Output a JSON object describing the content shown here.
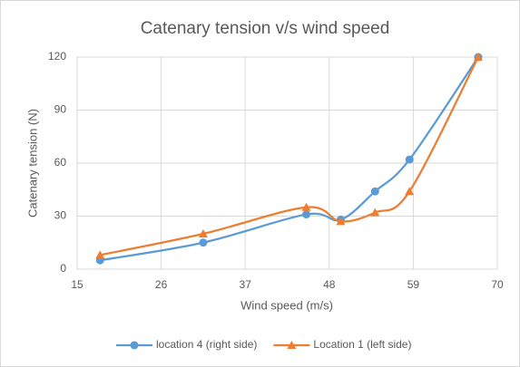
{
  "chart_data": {
    "type": "line",
    "title": "Catenary tension v/s wind speed",
    "x_label": "Wind speed (m/s)",
    "y_label": "Catenary tension (N)",
    "x": [
      18,
      31.5,
      45,
      49.5,
      54,
      58.5,
      67.5
    ],
    "series": [
      {
        "name": "location 4 (right side)",
        "color": "#5b9bd5",
        "marker": "circle",
        "values": [
          5,
          15,
          31,
          28,
          44,
          62,
          120
        ]
      },
      {
        "name": "Location 1 (left side)",
        "color": "#ed7d31",
        "marker": "triangle",
        "values": [
          8,
          20,
          35,
          27,
          32,
          44,
          120
        ]
      }
    ],
    "xlim": [
      15,
      70
    ],
    "xticks": [
      15,
      26,
      37,
      48,
      59,
      70
    ],
    "ylim": [
      0,
      120
    ],
    "yticks": [
      0,
      30,
      60,
      90,
      120
    ],
    "grid": true,
    "smooth": true,
    "legend": "bottom"
  }
}
